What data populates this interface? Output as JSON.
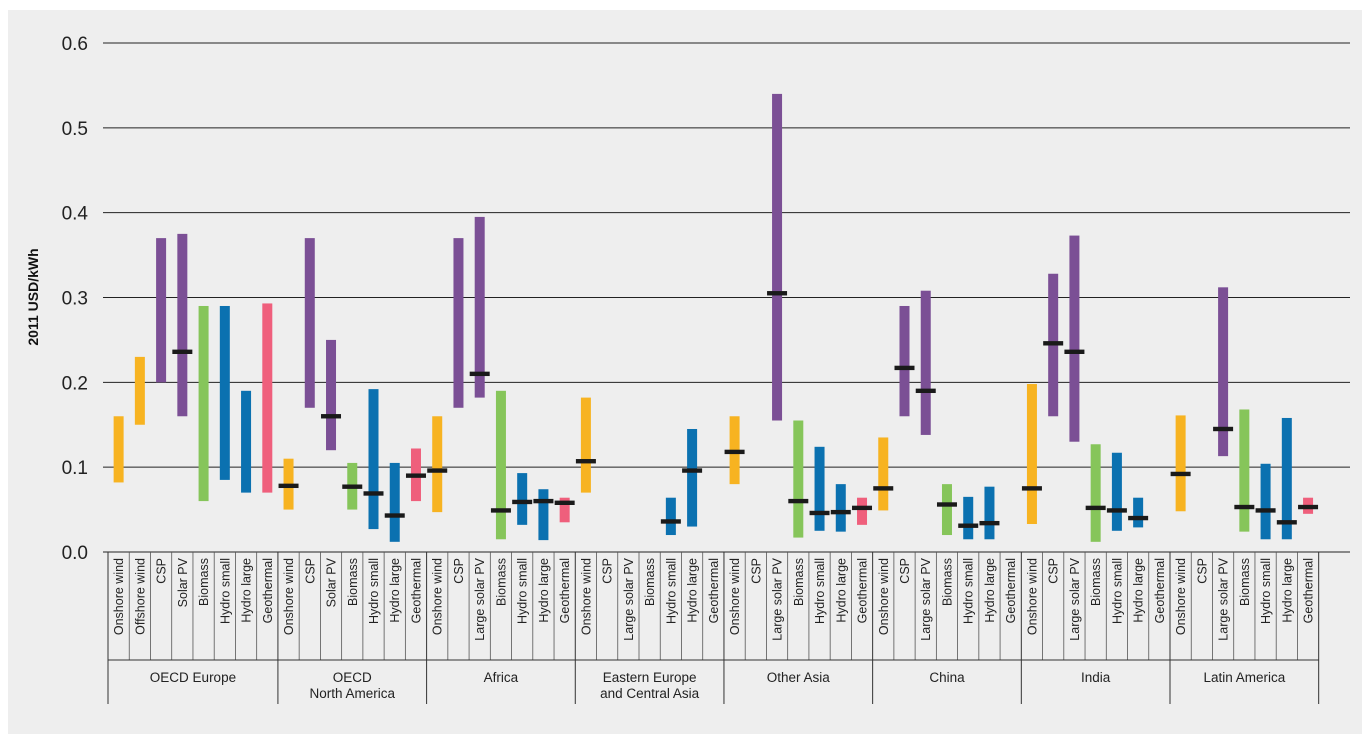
{
  "chart_data": {
    "type": "range-bar",
    "ylabel": "2011 USD/kWh",
    "ylim": [
      0,
      0.6
    ],
    "yticks": [
      "0.0",
      "0.1",
      "0.2",
      "0.3",
      "0.4",
      "0.5",
      "0.6"
    ],
    "grid": true,
    "colors": {
      "wind": "#f7b321",
      "solar": "#7b4f95",
      "biomass": "#86c55a",
      "hydro": "#0b71b0",
      "geothermal": "#ef5f7c",
      "marker": "#1a1a1a",
      "grid": "#222222"
    },
    "groups": [
      {
        "name": "OECD Europe",
        "items": [
          {
            "label": "Onshore wind",
            "tech": "wind",
            "min": 0.082,
            "max": 0.16
          },
          {
            "label": "Offshore wind",
            "tech": "wind",
            "min": 0.15,
            "max": 0.23
          },
          {
            "label": "CSP",
            "tech": "solar",
            "min": 0.2,
            "max": 0.37
          },
          {
            "label": "Solar PV",
            "tech": "solar",
            "min": 0.16,
            "max": 0.375,
            "mid": 0.236
          },
          {
            "label": "Biomass",
            "tech": "biomass",
            "min": 0.06,
            "max": 0.29
          },
          {
            "label": "Hydro small",
            "tech": "hydro",
            "min": 0.085,
            "max": 0.29
          },
          {
            "label": "Hydro large",
            "tech": "hydro",
            "min": 0.07,
            "max": 0.19
          },
          {
            "label": "Geothermal",
            "tech": "geothermal",
            "min": 0.07,
            "max": 0.293
          }
        ]
      },
      {
        "name": "OECD North America",
        "name_lines": [
          "OECD",
          "North America"
        ],
        "items": [
          {
            "label": "Onshore wind",
            "tech": "wind",
            "min": 0.05,
            "max": 0.11,
            "mid": 0.078
          },
          {
            "label": "CSP",
            "tech": "solar",
            "min": 0.17,
            "max": 0.37
          },
          {
            "label": "Solar PV",
            "tech": "solar",
            "min": 0.12,
            "max": 0.25,
            "mid": 0.16
          },
          {
            "label": "Biomass",
            "tech": "biomass",
            "min": 0.05,
            "max": 0.105,
            "mid": 0.077
          },
          {
            "label": "Hydro small",
            "tech": "hydro",
            "min": 0.027,
            "max": 0.192,
            "mid": 0.069
          },
          {
            "label": "Hydro large",
            "tech": "hydro",
            "min": 0.012,
            "max": 0.105,
            "mid": 0.043
          },
          {
            "label": "Geothermal",
            "tech": "geothermal",
            "min": 0.06,
            "max": 0.122,
            "mid": 0.09
          }
        ]
      },
      {
        "name": "Africa",
        "items": [
          {
            "label": "Onshore wind",
            "tech": "wind",
            "min": 0.047,
            "max": 0.16,
            "mid": 0.096
          },
          {
            "label": "CSP",
            "tech": "solar",
            "min": 0.17,
            "max": 0.37
          },
          {
            "label": "Large solar PV",
            "tech": "solar",
            "min": 0.182,
            "max": 0.395,
            "mid": 0.21
          },
          {
            "label": "Biomass",
            "tech": "biomass",
            "min": 0.015,
            "max": 0.19,
            "mid": 0.049
          },
          {
            "label": "Hydro small",
            "tech": "hydro",
            "min": 0.032,
            "max": 0.093,
            "mid": 0.059
          },
          {
            "label": "Hydro large",
            "tech": "hydro",
            "min": 0.014,
            "max": 0.074,
            "mid": 0.06
          },
          {
            "label": "Geothermal",
            "tech": "geothermal",
            "min": 0.035,
            "max": 0.064,
            "mid": 0.058
          }
        ]
      },
      {
        "name": "Eastern Europe and Central Asia",
        "name_lines": [
          "Eastern Europe",
          "and Central Asia"
        ],
        "items": [
          {
            "label": "Onshore wind",
            "tech": "wind",
            "min": 0.07,
            "max": 0.182,
            "mid": 0.107
          },
          {
            "label": "CSP",
            "tech": "solar"
          },
          {
            "label": "Large solar PV",
            "tech": "solar"
          },
          {
            "label": "Biomass",
            "tech": "biomass"
          },
          {
            "label": "Hydro small",
            "tech": "hydro",
            "min": 0.02,
            "max": 0.064,
            "mid": 0.036
          },
          {
            "label": "Hydro large",
            "tech": "hydro",
            "min": 0.03,
            "max": 0.145,
            "mid": 0.096
          },
          {
            "label": "Geothermal",
            "tech": "geothermal"
          }
        ]
      },
      {
        "name": "Other Asia",
        "items": [
          {
            "label": "Onshore wind",
            "tech": "wind",
            "min": 0.08,
            "max": 0.16,
            "mid": 0.118
          },
          {
            "label": "CSP",
            "tech": "solar"
          },
          {
            "label": "Large solar PV",
            "tech": "solar",
            "min": 0.155,
            "max": 0.54,
            "mid": 0.305
          },
          {
            "label": "Biomass",
            "tech": "biomass",
            "min": 0.017,
            "max": 0.155,
            "mid": 0.06
          },
          {
            "label": "Hydro small",
            "tech": "hydro",
            "min": 0.025,
            "max": 0.124,
            "mid": 0.046
          },
          {
            "label": "Hydro large",
            "tech": "hydro",
            "min": 0.024,
            "max": 0.08,
            "mid": 0.047
          },
          {
            "label": "Geothermal",
            "tech": "geothermal",
            "min": 0.032,
            "max": 0.064,
            "mid": 0.052
          }
        ]
      },
      {
        "name": "China",
        "items": [
          {
            "label": "Onshore wind",
            "tech": "wind",
            "min": 0.049,
            "max": 0.135,
            "mid": 0.075
          },
          {
            "label": "CSP",
            "tech": "solar",
            "min": 0.16,
            "max": 0.29,
            "mid": 0.217
          },
          {
            "label": "Large solar PV",
            "tech": "solar",
            "min": 0.138,
            "max": 0.308,
            "mid": 0.19
          },
          {
            "label": "Biomass",
            "tech": "biomass",
            "min": 0.02,
            "max": 0.08,
            "mid": 0.056
          },
          {
            "label": "Hydro small",
            "tech": "hydro",
            "min": 0.015,
            "max": 0.065,
            "mid": 0.031
          },
          {
            "label": "Hydro large",
            "tech": "hydro",
            "min": 0.015,
            "max": 0.077,
            "mid": 0.034
          },
          {
            "label": "Geothermal",
            "tech": "geothermal"
          }
        ]
      },
      {
        "name": "India",
        "items": [
          {
            "label": "Onshore wind",
            "tech": "wind",
            "min": 0.033,
            "max": 0.198,
            "mid": 0.075
          },
          {
            "label": "CSP",
            "tech": "solar",
            "min": 0.16,
            "max": 0.328,
            "mid": 0.246
          },
          {
            "label": "Large solar PV",
            "tech": "solar",
            "min": 0.13,
            "max": 0.373,
            "mid": 0.236
          },
          {
            "label": "Biomass",
            "tech": "biomass",
            "min": 0.012,
            "max": 0.127,
            "mid": 0.052
          },
          {
            "label": "Hydro small",
            "tech": "hydro",
            "min": 0.025,
            "max": 0.117,
            "mid": 0.049
          },
          {
            "label": "Hydro large",
            "tech": "hydro",
            "min": 0.029,
            "max": 0.064,
            "mid": 0.04
          },
          {
            "label": "Geothermal",
            "tech": "geothermal"
          }
        ]
      },
      {
        "name": "Latin America",
        "items": [
          {
            "label": "Onshore wind",
            "tech": "wind",
            "min": 0.048,
            "max": 0.161,
            "mid": 0.092
          },
          {
            "label": "CSP",
            "tech": "solar"
          },
          {
            "label": "Large solar PV",
            "tech": "solar",
            "min": 0.113,
            "max": 0.312,
            "mid": 0.145
          },
          {
            "label": "Biomass",
            "tech": "biomass",
            "min": 0.024,
            "max": 0.168,
            "mid": 0.053
          },
          {
            "label": "Hydro small",
            "tech": "hydro",
            "min": 0.015,
            "max": 0.104,
            "mid": 0.049
          },
          {
            "label": "Hydro large",
            "tech": "hydro",
            "min": 0.015,
            "max": 0.158,
            "mid": 0.035
          },
          {
            "label": "Geothermal",
            "tech": "geothermal",
            "min": 0.045,
            "max": 0.064,
            "mid": 0.053
          }
        ]
      }
    ]
  }
}
